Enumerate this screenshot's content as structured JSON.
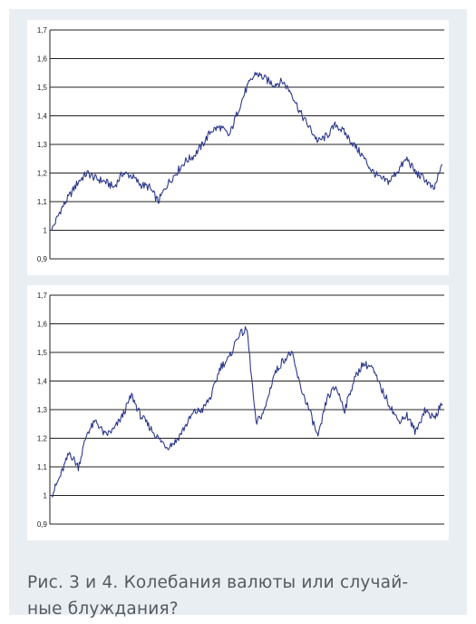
{
  "caption": "Рис. 3 и 4. Колебания валюты или случай-ные блуждания?",
  "caption_lines": [
    "Рис. 3 и 4. Колебания валюты или случай-",
    "ные блуждания?"
  ],
  "colors": {
    "panel_bg": "#e9eef3",
    "series": "#2e3a8c",
    "grid": "#222222"
  },
  "chart_data": [
    {
      "type": "line",
      "ylim": [
        0.9,
        1.7
      ],
      "yticks": [
        "0,9",
        "1",
        "1,1",
        "1,2",
        "1,3",
        "1,4",
        "1,5",
        "1,6",
        "1,7"
      ],
      "grid": true,
      "series": [
        {
          "x": [
            0,
            10,
            20,
            30,
            40,
            50,
            60,
            70,
            80,
            90,
            100,
            110,
            120,
            130,
            140,
            150,
            160,
            170,
            180,
            190,
            200,
            210,
            220,
            230,
            240,
            250,
            260,
            270,
            280,
            290,
            300,
            310,
            320,
            330,
            340,
            350,
            360,
            370,
            380,
            390,
            400,
            410,
            420,
            430,
            440
          ],
          "values": [
            1.0,
            1.07,
            1.12,
            1.17,
            1.2,
            1.18,
            1.17,
            1.15,
            1.2,
            1.19,
            1.16,
            1.15,
            1.1,
            1.16,
            1.2,
            1.24,
            1.26,
            1.3,
            1.35,
            1.36,
            1.33,
            1.42,
            1.5,
            1.55,
            1.53,
            1.51,
            1.52,
            1.48,
            1.41,
            1.36,
            1.31,
            1.33,
            1.37,
            1.34,
            1.3,
            1.26,
            1.21,
            1.18,
            1.17,
            1.21,
            1.25,
            1.2,
            1.18,
            1.14,
            1.23
          ]
        }
      ]
    },
    {
      "type": "line",
      "ylim": [
        0.9,
        1.7
      ],
      "yticks": [
        "0,9",
        "1",
        "1,1",
        "1,2",
        "1,3",
        "1,4",
        "1,5",
        "1,6",
        "1,7"
      ],
      "grid": true,
      "series": [
        {
          "x": [
            0,
            10,
            20,
            30,
            40,
            50,
            60,
            70,
            80,
            90,
            100,
            110,
            120,
            130,
            140,
            150,
            160,
            170,
            180,
            190,
            200,
            210,
            220,
            230,
            240,
            250,
            260,
            270,
            280,
            290,
            300,
            310,
            320,
            330,
            340,
            350,
            360,
            370,
            380,
            390,
            400,
            410,
            420,
            430,
            440
          ],
          "values": [
            1.0,
            1.07,
            1.15,
            1.1,
            1.22,
            1.26,
            1.21,
            1.23,
            1.28,
            1.35,
            1.28,
            1.24,
            1.2,
            1.17,
            1.19,
            1.24,
            1.29,
            1.3,
            1.35,
            1.45,
            1.48,
            1.56,
            1.58,
            1.25,
            1.3,
            1.42,
            1.47,
            1.5,
            1.38,
            1.3,
            1.2,
            1.34,
            1.38,
            1.3,
            1.4,
            1.46,
            1.45,
            1.38,
            1.32,
            1.26,
            1.28,
            1.22,
            1.3,
            1.27,
            1.32
          ]
        }
      ]
    }
  ]
}
